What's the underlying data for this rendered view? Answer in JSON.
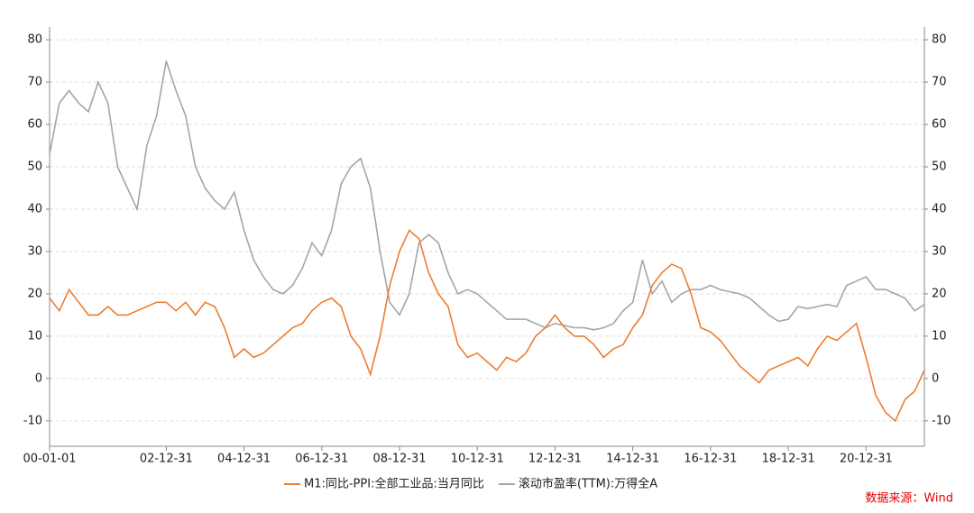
{
  "chart_data": {
    "type": "line",
    "categories": [
      "00-01-01",
      null,
      null,
      null,
      null,
      null,
      null,
      null,
      null,
      null,
      null,
      null,
      "02-12-31",
      null,
      null,
      null,
      null,
      null,
      null,
      null,
      "04-12-31",
      null,
      null,
      null,
      null,
      null,
      null,
      null,
      "06-12-31",
      null,
      null,
      null,
      null,
      null,
      null,
      null,
      "08-12-31",
      null,
      null,
      null,
      null,
      null,
      null,
      null,
      "10-12-31",
      null,
      null,
      null,
      null,
      null,
      null,
      null,
      "12-12-31",
      null,
      null,
      null,
      null,
      null,
      null,
      null,
      "14-12-31",
      null,
      null,
      null,
      null,
      null,
      null,
      null,
      "16-12-31",
      null,
      null,
      null,
      null,
      null,
      null,
      null,
      "18-12-31",
      null,
      null,
      null,
      null,
      null,
      null,
      null,
      "20-12-31",
      null,
      null,
      null,
      null,
      null,
      null
    ],
    "series": [
      {
        "name": "M1:同比-PPI:全部工业品:当月同比",
        "color": "#ed7d31",
        "axis": "y",
        "values": [
          19,
          16,
          21,
          18,
          15,
          15,
          17,
          15,
          15,
          16,
          17,
          18,
          18,
          16,
          18,
          15,
          18,
          17,
          12,
          5,
          7,
          5,
          6,
          8,
          10,
          12,
          13,
          16,
          18,
          19,
          17,
          10,
          7,
          1,
          10,
          22,
          30,
          35,
          33,
          25,
          20,
          17,
          8,
          5,
          6,
          4,
          2,
          5,
          4,
          6,
          10,
          12,
          15,
          12,
          10,
          10,
          8,
          5,
          7,
          8,
          12,
          15,
          22,
          25,
          27,
          26,
          20,
          12,
          11,
          9,
          6,
          3,
          1,
          -1,
          2,
          3,
          4,
          5,
          3,
          7,
          10,
          9,
          11,
          13,
          5,
          -4,
          -8,
          -10,
          -5,
          -3,
          2
        ]
      },
      {
        "name": "滚动市盈率(TTM):万得全A",
        "color": "#a5a5a5",
        "axis": "y2",
        "values": [
          53,
          65,
          68,
          65,
          63,
          70,
          65,
          50,
          45,
          40,
          55,
          62,
          75,
          68,
          62,
          50,
          45,
          42,
          40,
          44,
          35,
          28,
          24,
          21,
          20,
          22,
          26,
          32,
          29,
          35,
          46,
          50,
          52,
          45,
          30,
          18,
          15,
          20,
          32,
          34,
          32,
          25,
          20,
          21,
          20,
          18,
          16,
          14,
          14,
          14,
          13,
          12,
          13,
          12.5,
          12,
          12,
          11.5,
          12,
          13,
          16,
          18,
          28,
          20,
          23,
          18,
          20,
          21,
          21,
          22,
          21,
          20.5,
          20,
          19,
          17,
          15,
          13.5,
          14,
          17,
          16.5,
          17,
          17.5,
          17,
          22,
          23,
          24,
          21,
          21,
          20,
          19,
          16,
          17.5
        ]
      }
    ],
    "ylim": [
      -16,
      83
    ],
    "yticks": [
      -10,
      0,
      10,
      20,
      30,
      40,
      50,
      60,
      70,
      80
    ],
    "y2lim": [
      -16,
      83
    ],
    "y2ticks": [
      -10,
      0,
      10,
      20,
      30,
      40,
      50,
      60,
      70,
      80
    ],
    "grid": true,
    "legend": "bottom",
    "source": "数据来源：Wind"
  }
}
